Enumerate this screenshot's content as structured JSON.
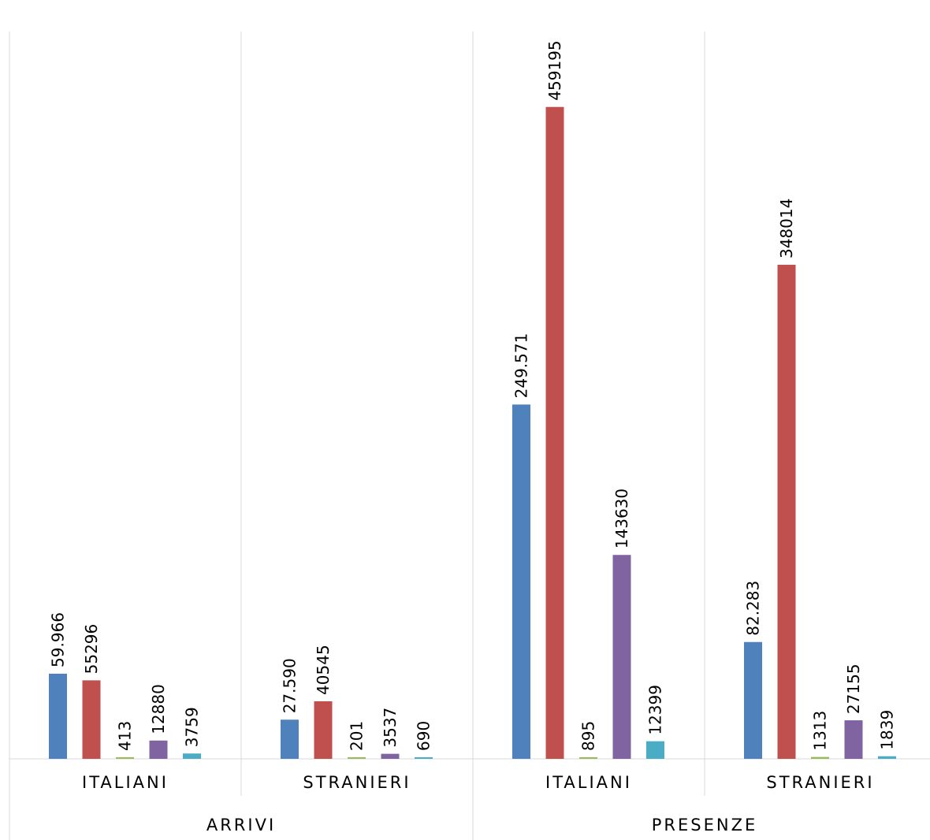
{
  "chart_data": {
    "type": "bar",
    "groups": [
      {
        "label": "ARRIVI",
        "categories": [
          "ITALIANI",
          "STRANIERI"
        ]
      },
      {
        "label": "PRESENZE",
        "categories": [
          "ITALIANI",
          "STRANIERI"
        ]
      }
    ],
    "categories": [
      "ITALIANI",
      "STRANIERI",
      "ITALIANI",
      "STRANIERI"
    ],
    "series": [
      {
        "color": "#4F81BD",
        "values": [
          59966,
          27590,
          249571,
          82283
        ],
        "labels": [
          "59.966",
          "27.590",
          "249.571",
          "82.283"
        ]
      },
      {
        "color": "#C0504D",
        "values": [
          55296,
          40545,
          459195,
          348014
        ],
        "labels": [
          "55296",
          "40545",
          "459195",
          "348014"
        ]
      },
      {
        "color": "#9BBB59",
        "values": [
          413,
          201,
          895,
          1313
        ],
        "labels": [
          "413",
          "201",
          "895",
          "1313"
        ]
      },
      {
        "color": "#8064A2",
        "values": [
          12880,
          3537,
          143630,
          27155
        ],
        "labels": [
          "12880",
          "3537",
          "143630",
          "27155"
        ]
      },
      {
        "color": "#4BACC6",
        "values": [
          3759,
          690,
          12399,
          1839
        ],
        "labels": [
          "3759",
          "690",
          "12399",
          "1839"
        ]
      }
    ],
    "ylim": [
      0,
      500000
    ],
    "grid": false,
    "legend": "none"
  }
}
